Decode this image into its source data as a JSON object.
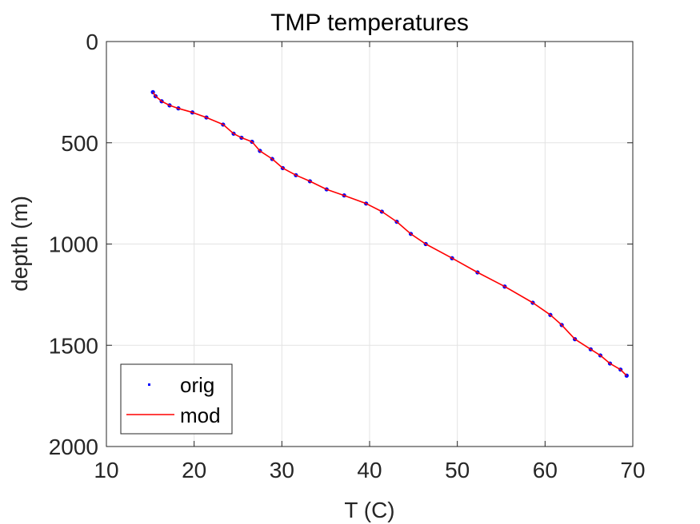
{
  "chart_data": {
    "type": "line",
    "title": "TMP temperatures",
    "xlabel": "T (C)",
    "ylabel": "depth (m)",
    "xlim": [
      10,
      70
    ],
    "ylim": [
      0,
      2000
    ],
    "y_reversed": true,
    "grid": true,
    "xticks": [
      "10",
      "20",
      "30",
      "40",
      "50",
      "60",
      "70"
    ],
    "yticks": [
      "0",
      "500",
      "1000",
      "1500",
      "2000"
    ],
    "legend_position": "bottom-left",
    "series": [
      {
        "name": "orig",
        "style": "points",
        "color": "#0000ff",
        "x": [
          15.3,
          15.6,
          16.3,
          17.2,
          18.2,
          19.8,
          21.4,
          23.3,
          24.5,
          25.4,
          26.6,
          27.5,
          28.9,
          30.1,
          31.6,
          33.2,
          35.1,
          37.1,
          39.6,
          41.4,
          43.1,
          44.7,
          46.4,
          49.4,
          52.3,
          55.4,
          58.6,
          60.6,
          61.9,
          63.4,
          65.2,
          66.3,
          67.4,
          68.6,
          69.3
        ],
        "y": [
          250,
          270,
          295,
          315,
          330,
          350,
          375,
          410,
          455,
          475,
          495,
          540,
          580,
          625,
          660,
          690,
          730,
          760,
          800,
          840,
          890,
          950,
          1000,
          1070,
          1140,
          1210,
          1290,
          1350,
          1400,
          1470,
          1520,
          1550,
          1590,
          1620,
          1650
        ]
      },
      {
        "name": "mod",
        "style": "line",
        "color": "#ff0000",
        "x": [
          15.3,
          15.6,
          16.3,
          17.2,
          18.2,
          19.8,
          21.4,
          23.3,
          24.5,
          25.4,
          26.6,
          27.5,
          28.9,
          30.1,
          31.6,
          33.2,
          35.1,
          37.1,
          39.6,
          41.4,
          43.1,
          44.7,
          46.4,
          49.4,
          52.3,
          55.4,
          58.6,
          60.6,
          61.9,
          63.4,
          65.2,
          66.3,
          67.4,
          68.6,
          69.3
        ],
        "y": [
          250,
          270,
          295,
          315,
          330,
          350,
          375,
          410,
          455,
          475,
          495,
          540,
          580,
          625,
          660,
          690,
          730,
          760,
          800,
          840,
          890,
          950,
          1000,
          1070,
          1140,
          1210,
          1290,
          1350,
          1400,
          1470,
          1520,
          1550,
          1590,
          1620,
          1650
        ]
      }
    ]
  }
}
